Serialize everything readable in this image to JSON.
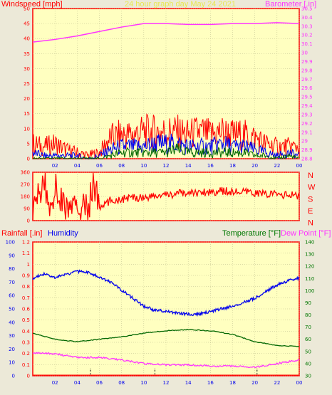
{
  "header": {
    "left_title": "Windspeed [mph]",
    "center_title": "24 hour graph day   May 24 2021",
    "right_title": "Barometer [.in]"
  },
  "colors": {
    "plot_bg": "#ffffc0",
    "frame": "#ff0000",
    "red": "#ff0000",
    "blue": "#0000ee",
    "green": "#006600",
    "magenta": "#ff33ff",
    "dark_green": "#007700",
    "title_yellow": "#eeee66",
    "humidity_blue": "#0000ee"
  },
  "chart_data": [
    {
      "type": "line",
      "id": "wind-barometer",
      "title": "24 hour graph day   May 24 2021",
      "xlabel": "",
      "ylabel": "Windspeed [mph]",
      "y2label": "Barometer [.in]",
      "ylim": [
        0,
        50
      ],
      "y2lim": [
        28.8,
        30.5
      ],
      "yticks": [
        "0",
        "5",
        "10",
        "15",
        "20",
        "25",
        "30",
        "35",
        "40",
        "45",
        "50"
      ],
      "y2ticks": [
        "28.8",
        "28.9",
        "29",
        "29.1",
        "29.2",
        "29.3",
        "29.4",
        "29.5",
        "29.6",
        "29.7",
        "29.8",
        "29.9",
        "30",
        "30.1",
        "30.2",
        "30.3",
        "30.4",
        "30.5"
      ],
      "xticks": [
        "02",
        "04",
        "06",
        "08",
        "10",
        "12",
        "14",
        "16",
        "18",
        "20",
        "22",
        "00"
      ],
      "grid": true,
      "series": [
        {
          "axis": "y2",
          "x": [
            0,
            2,
            4,
            6,
            8,
            10,
            12,
            14,
            16,
            18,
            20,
            22,
            24
          ],
          "values": [
            30.12,
            30.15,
            30.19,
            30.24,
            30.29,
            30.33,
            30.33,
            30.32,
            30.32,
            30.33,
            30.33,
            30.34,
            30.33
          ]
        },
        {
          "axis": "y",
          "x": [
            0,
            1,
            2,
            3,
            4,
            5,
            6,
            7,
            8,
            9,
            10,
            11,
            12,
            13,
            14,
            15,
            16,
            17,
            18,
            19,
            20,
            21,
            22,
            23,
            24
          ],
          "values": [
            5,
            4,
            5,
            3,
            2,
            1,
            2,
            7,
            8,
            8,
            9,
            9,
            9,
            9,
            8,
            9,
            8,
            9,
            8,
            8,
            7,
            5,
            4,
            4,
            4
          ]
        },
        {
          "axis": "y",
          "x": [
            0,
            1,
            2,
            3,
            4,
            5,
            6,
            7,
            8,
            9,
            10,
            11,
            12,
            13,
            14,
            15,
            16,
            17,
            18,
            19,
            20,
            21,
            22,
            23,
            24
          ],
          "values": [
            2,
            1,
            1,
            1,
            1,
            0,
            1,
            3,
            4,
            4,
            4,
            5,
            5,
            5,
            4,
            4,
            4,
            5,
            4,
            4,
            3,
            2,
            1,
            2,
            1
          ]
        },
        {
          "axis": "y",
          "x": [
            0,
            1,
            2,
            3,
            4,
            5,
            6,
            7,
            8,
            9,
            10,
            11,
            12,
            13,
            14,
            15,
            16,
            17,
            18,
            19,
            20,
            21,
            22,
            23,
            24
          ],
          "values": [
            0,
            0,
            0,
            0,
            0,
            0,
            0,
            1,
            2,
            2,
            2,
            2,
            2,
            3,
            2,
            2,
            2,
            2,
            2,
            2,
            1,
            1,
            0,
            1,
            0
          ]
        }
      ]
    },
    {
      "type": "line",
      "id": "wind-direction",
      "ylim": [
        0,
        360
      ],
      "yticks": [
        "0",
        "90",
        "180",
        "270",
        "360"
      ],
      "y2ticks": [
        "N",
        "W",
        "S",
        "E",
        "N"
      ],
      "x": [
        0,
        1,
        1.5,
        2,
        3,
        4,
        5,
        5.5,
        6,
        7,
        8,
        9,
        10,
        11,
        12,
        13,
        14,
        15,
        16,
        17,
        18,
        19,
        20,
        21,
        22,
        23,
        24
      ],
      "values": [
        60,
        300,
        90,
        250,
        90,
        90,
        90,
        300,
        90,
        150,
        160,
        170,
        175,
        180,
        190,
        200,
        205,
        210,
        215,
        220,
        215,
        210,
        205,
        200,
        195,
        190,
        185
      ]
    },
    {
      "type": "line",
      "id": "rain-humidity-temp",
      "ylabel": "Rainfall [.in]",
      "ylabel2": "Humidity",
      "y2label": "Temperature [°F]",
      "y2label2": "Dew Point [°F]",
      "ylim_rain": [
        0,
        1.2
      ],
      "ylim_humidity": [
        0,
        100
      ],
      "y2lim": [
        30,
        140
      ],
      "rain_ticks": [
        "0",
        "0.1",
        "0.2",
        "0.3",
        "0.4",
        "0.5",
        "0.6",
        "0.7",
        "0.8",
        "0.9",
        "1",
        "1.1",
        "1.2"
      ],
      "humidity_ticks": [
        "0",
        "10",
        "20",
        "30",
        "40",
        "50",
        "60",
        "70",
        "80",
        "90",
        "100"
      ],
      "temp_ticks": [
        "30",
        "40",
        "50",
        "60",
        "70",
        "80",
        "90",
        "100",
        "110",
        "120",
        "130",
        "140"
      ],
      "xticks": [
        "02",
        "04",
        "06",
        "08",
        "10",
        "12",
        "14",
        "16",
        "18",
        "20",
        "22",
        "00"
      ],
      "series": [
        {
          "axis": "humidity",
          "x": [
            0,
            1,
            2,
            3,
            4,
            5,
            6,
            7,
            8,
            9,
            10,
            11,
            12,
            13,
            14,
            15,
            16,
            17,
            18,
            19,
            20,
            21,
            22,
            23,
            24
          ],
          "values": [
            73,
            76,
            73,
            76,
            78,
            77,
            74,
            70,
            64,
            58,
            52,
            49,
            48,
            47,
            46,
            46,
            48,
            50,
            52,
            55,
            58,
            63,
            68,
            71,
            73
          ]
        },
        {
          "axis": "temp",
          "x": [
            0,
            2,
            4,
            6,
            8,
            10,
            12,
            14,
            16,
            18,
            20,
            22,
            24
          ],
          "values": [
            65,
            60,
            58,
            60,
            62,
            65,
            67,
            68,
            67,
            64,
            58,
            55,
            54
          ]
        },
        {
          "axis": "temp",
          "x": [
            0,
            2,
            4,
            6,
            8,
            10,
            12,
            14,
            16,
            18,
            20,
            22,
            24
          ],
          "values": [
            49,
            48,
            45,
            45,
            43,
            40,
            39,
            39,
            38,
            38,
            37,
            40,
            43
          ]
        },
        {
          "axis": "rain",
          "x": [
            5.2,
            11,
            20.2
          ],
          "values": [
            0,
            0,
            0
          ]
        }
      ]
    }
  ]
}
